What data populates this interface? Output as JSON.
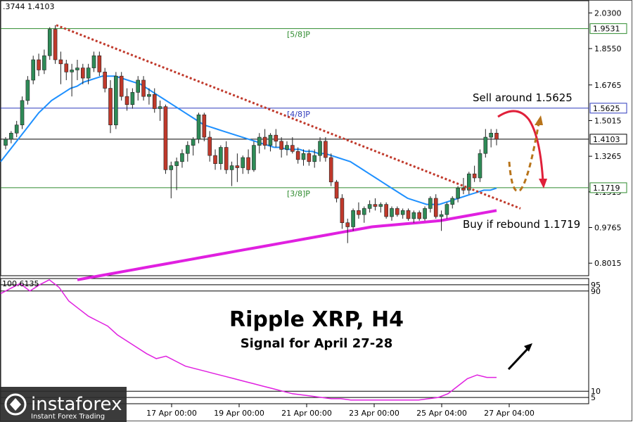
{
  "header": {
    "ohlc_readout": ".3744 1.4103"
  },
  "overlay": {
    "title": "Ripple XRP, H4",
    "subtitle": "Signal for April 27-28",
    "sell_note": "Sell around 1.5625",
    "buy_note": "Buy if rebound 1.1719"
  },
  "brand": {
    "name": "instaforex",
    "tagline": "Instant Forex Trading"
  },
  "colors": {
    "candle_up": "#2e8b57",
    "candle_down": "#c0392b",
    "ma_fast": "#1e90ff",
    "ma_slow": "#e020e0",
    "trendline": "#c0392b",
    "level_green": "#2e8b2e",
    "level_blue": "#2f3bbd",
    "sell_arrow": "#e0203a",
    "buy_arrow": "#b8741a",
    "indicator_line": "#e020e0"
  },
  "chart_data": [
    {
      "type": "candlestick",
      "title": "Ripple XRP, H4",
      "y_ticks": [
        "2.0300",
        "1.8550",
        "1.6765",
        "1.5015",
        "1.3265",
        "1.1515",
        "0.9765",
        "0.8015"
      ],
      "x_ticks": [
        "17 Apr 00:00",
        "19 Apr 00:00",
        "21 Apr 00:00",
        "23 Apr 00:00",
        "25 Apr 04:00",
        "27 Apr 04:00"
      ],
      "ylim": [
        0.74,
        2.09
      ],
      "current_price": "1.4103",
      "levels": [
        {
          "label": "[5/8]P",
          "price": "1.9531",
          "value": 1.9531,
          "color": "green"
        },
        {
          "label": "[4/8]P",
          "price": "1.5625",
          "value": 1.5625,
          "color": "blue"
        },
        {
          "label": "[3/8]P",
          "price": "1.1719",
          "value": 1.1719,
          "color": "green"
        }
      ],
      "current_value": 1.4103,
      "candles": [
        [
          1.38,
          1.42,
          1.36,
          1.41
        ],
        [
          1.41,
          1.45,
          1.39,
          1.44
        ],
        [
          1.44,
          1.5,
          1.42,
          1.48
        ],
        [
          1.48,
          1.62,
          1.46,
          1.6
        ],
        [
          1.6,
          1.72,
          1.58,
          1.7
        ],
        [
          1.7,
          1.82,
          1.68,
          1.8
        ],
        [
          1.8,
          1.83,
          1.72,
          1.75
        ],
        [
          1.75,
          1.85,
          1.73,
          1.82
        ],
        [
          1.82,
          1.96,
          1.8,
          1.95
        ],
        [
          1.95,
          1.97,
          1.78,
          1.8
        ],
        [
          1.8,
          1.84,
          1.68,
          1.78
        ],
        [
          1.78,
          1.8,
          1.7,
          1.74
        ],
        [
          1.74,
          1.78,
          1.62,
          1.75
        ],
        [
          1.75,
          1.8,
          1.7,
          1.76
        ],
        [
          1.76,
          1.78,
          1.68,
          1.71
        ],
        [
          1.71,
          1.78,
          1.68,
          1.76
        ],
        [
          1.76,
          1.84,
          1.74,
          1.82
        ],
        [
          1.82,
          1.84,
          1.72,
          1.74
        ],
        [
          1.74,
          1.76,
          1.64,
          1.66
        ],
        [
          1.66,
          1.7,
          1.44,
          1.48
        ],
        [
          1.48,
          1.74,
          1.46,
          1.72
        ],
        [
          1.72,
          1.74,
          1.6,
          1.62
        ],
        [
          1.62,
          1.66,
          1.55,
          1.58
        ],
        [
          1.58,
          1.66,
          1.56,
          1.64
        ],
        [
          1.64,
          1.72,
          1.6,
          1.7
        ],
        [
          1.7,
          1.72,
          1.6,
          1.62
        ],
        [
          1.62,
          1.66,
          1.58,
          1.63
        ],
        [
          1.63,
          1.66,
          1.54,
          1.56
        ],
        [
          1.56,
          1.6,
          1.5,
          1.57
        ],
        [
          1.57,
          1.58,
          1.24,
          1.26
        ],
        [
          1.26,
          1.3,
          1.12,
          1.28
        ],
        [
          1.28,
          1.32,
          1.16,
          1.3
        ],
        [
          1.3,
          1.36,
          1.27,
          1.34
        ],
        [
          1.34,
          1.4,
          1.3,
          1.38
        ],
        [
          1.38,
          1.42,
          1.33,
          1.41
        ],
        [
          1.41,
          1.54,
          1.39,
          1.53
        ],
        [
          1.53,
          1.54,
          1.4,
          1.42
        ],
        [
          1.42,
          1.45,
          1.3,
          1.33
        ],
        [
          1.33,
          1.36,
          1.26,
          1.29
        ],
        [
          1.29,
          1.38,
          1.26,
          1.37
        ],
        [
          1.37,
          1.4,
          1.24,
          1.26
        ],
        [
          1.26,
          1.3,
          1.18,
          1.28
        ],
        [
          1.28,
          1.34,
          1.2,
          1.27
        ],
        [
          1.27,
          1.33,
          1.24,
          1.32
        ],
        [
          1.32,
          1.36,
          1.24,
          1.26
        ],
        [
          1.26,
          1.4,
          1.25,
          1.38
        ],
        [
          1.38,
          1.44,
          1.34,
          1.42
        ],
        [
          1.42,
          1.46,
          1.36,
          1.38
        ],
        [
          1.38,
          1.44,
          1.35,
          1.43
        ],
        [
          1.43,
          1.46,
          1.37,
          1.4
        ],
        [
          1.4,
          1.42,
          1.32,
          1.36
        ],
        [
          1.36,
          1.4,
          1.33,
          1.38
        ],
        [
          1.38,
          1.42,
          1.34,
          1.35
        ],
        [
          1.35,
          1.37,
          1.29,
          1.31
        ],
        [
          1.31,
          1.36,
          1.28,
          1.34
        ],
        [
          1.34,
          1.36,
          1.28,
          1.3
        ],
        [
          1.3,
          1.36,
          1.27,
          1.33
        ],
        [
          1.33,
          1.42,
          1.3,
          1.4
        ],
        [
          1.4,
          1.42,
          1.3,
          1.32
        ],
        [
          1.32,
          1.34,
          1.18,
          1.2
        ],
        [
          1.2,
          1.21,
          1.1,
          1.12
        ],
        [
          1.12,
          1.14,
          0.97,
          1.0
        ],
        [
          1.0,
          1.02,
          0.9,
          0.98
        ],
        [
          0.98,
          1.07,
          0.96,
          1.06
        ],
        [
          1.06,
          1.1,
          1.02,
          1.04
        ],
        [
          1.04,
          1.08,
          1.0,
          1.07
        ],
        [
          1.07,
          1.11,
          1.05,
          1.09
        ],
        [
          1.09,
          1.12,
          1.06,
          1.08
        ],
        [
          1.08,
          1.1,
          1.05,
          1.09
        ],
        [
          1.09,
          1.1,
          1.02,
          1.03
        ],
        [
          1.03,
          1.08,
          1.01,
          1.07
        ],
        [
          1.07,
          1.08,
          1.03,
          1.04
        ],
        [
          1.04,
          1.07,
          1.02,
          1.06
        ],
        [
          1.06,
          1.07,
          1.01,
          1.02
        ],
        [
          1.02,
          1.06,
          1.0,
          1.05
        ],
        [
          1.05,
          1.06,
          1.01,
          1.02
        ],
        [
          1.02,
          1.08,
          1.01,
          1.07
        ],
        [
          1.07,
          1.13,
          1.05,
          1.12
        ],
        [
          1.12,
          1.14,
          1.02,
          1.03
        ],
        [
          1.03,
          1.06,
          0.96,
          1.04
        ],
        [
          1.04,
          1.1,
          1.02,
          1.09
        ],
        [
          1.09,
          1.13,
          1.07,
          1.12
        ],
        [
          1.12,
          1.18,
          1.1,
          1.17
        ],
        [
          1.17,
          1.22,
          1.14,
          1.16
        ],
        [
          1.16,
          1.25,
          1.14,
          1.24
        ],
        [
          1.24,
          1.28,
          1.2,
          1.22
        ],
        [
          1.22,
          1.36,
          1.2,
          1.34
        ],
        [
          1.34,
          1.46,
          1.32,
          1.42
        ],
        [
          1.42,
          1.46,
          1.37,
          1.44
        ],
        [
          1.44,
          1.46,
          1.38,
          1.41
        ]
      ],
      "ma_fast": [
        1.3,
        1.34,
        1.38,
        1.42,
        1.46,
        1.5,
        1.54,
        1.57,
        1.6,
        1.62,
        1.64,
        1.66,
        1.67,
        1.69,
        1.7,
        1.71,
        1.72,
        1.72,
        1.72,
        1.71,
        1.7,
        1.69,
        1.68,
        1.66,
        1.64,
        1.62,
        1.6,
        1.58,
        1.56,
        1.54,
        1.52,
        1.5,
        1.48,
        1.47,
        1.46,
        1.45,
        1.44,
        1.43,
        1.42,
        1.41,
        1.4,
        1.39,
        1.38,
        1.37,
        1.37,
        1.36,
        1.36,
        1.36,
        1.35,
        1.35,
        1.34,
        1.34,
        1.33,
        1.32,
        1.31,
        1.3,
        1.28,
        1.26,
        1.24,
        1.22,
        1.2,
        1.18,
        1.16,
        1.14,
        1.12,
        1.11,
        1.1,
        1.09,
        1.09,
        1.09,
        1.1,
        1.11,
        1.12,
        1.13,
        1.14,
        1.15,
        1.16,
        1.16,
        1.17
      ],
      "ma_slow": [
        0.72,
        0.73,
        0.74,
        0.75,
        0.76,
        0.77,
        0.78,
        0.79,
        0.8,
        0.81,
        0.82,
        0.83,
        0.84,
        0.85,
        0.86,
        0.87,
        0.88,
        0.89,
        0.9,
        0.91,
        0.92,
        0.93,
        0.94,
        0.95,
        0.96,
        0.97,
        0.98,
        0.985,
        0.99,
        0.995,
        1.0,
        1.005,
        1.01,
        1.02,
        1.03,
        1.04,
        1.05,
        1.06
      ],
      "trendline": [
        [
          1.97,
          1.07
        ]
      ]
    },
    {
      "type": "line",
      "ylim": [
        0,
        100
      ],
      "y_ticks": [
        "95",
        "90",
        "10",
        "5"
      ],
      "readout": "100.6135",
      "values": [
        88,
        92,
        96,
        90,
        95,
        99,
        93,
        82,
        76,
        70,
        66,
        62,
        55,
        50,
        45,
        40,
        36,
        38,
        34,
        30,
        28,
        26,
        24,
        22,
        20,
        18,
        16,
        14,
        12,
        10,
        8,
        7,
        6,
        5,
        4,
        4,
        3,
        3,
        3,
        3,
        3,
        3,
        3,
        3,
        4,
        5,
        8,
        14,
        20,
        23,
        21,
        21
      ]
    }
  ]
}
